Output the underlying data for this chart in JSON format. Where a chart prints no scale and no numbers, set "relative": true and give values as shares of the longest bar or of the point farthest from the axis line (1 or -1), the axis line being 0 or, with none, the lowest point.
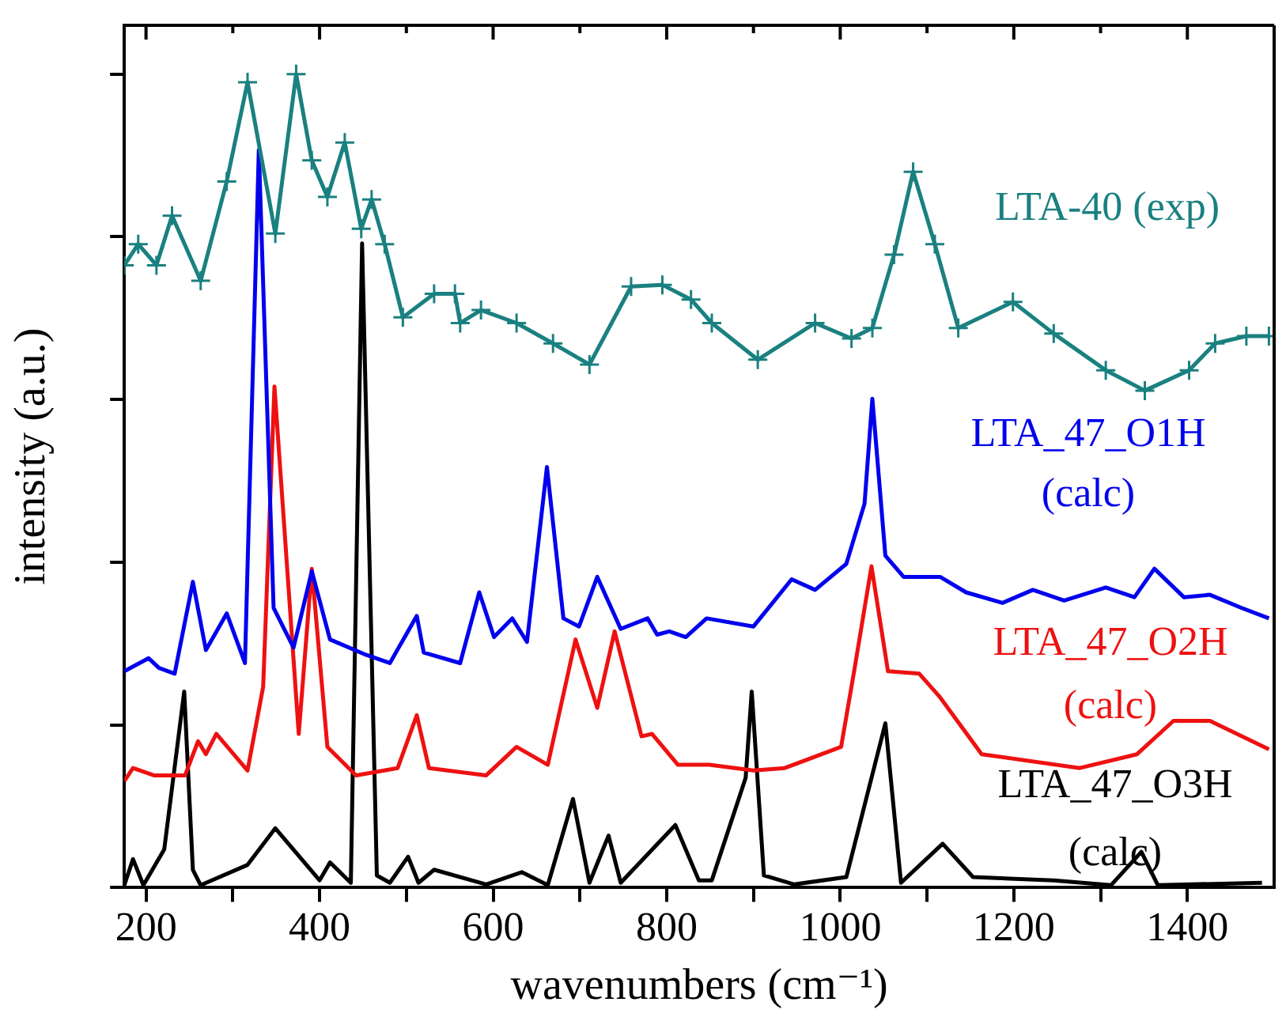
{
  "chart_data": {
    "type": "line",
    "relative": true,
    "xlabel": "wavenumbers (cm⁻¹)",
    "ylabel": "intensity (a.u.)",
    "xlim": [
      175,
      1500
    ],
    "xticks": [
      200,
      {
        "value": 300,
        "label": null
      },
      400,
      {
        "value": 500,
        "label": null
      },
      600,
      {
        "value": 700,
        "label": null
      },
      800,
      {
        "value": 900,
        "label": null
      },
      1000,
      {
        "value": 1100,
        "label": null
      },
      1200,
      {
        "value": 1300,
        "label": null
      },
      1400
    ],
    "grid": false,
    "legend": false,
    "marker": "none",
    "line_style": "solid",
    "series": [
      {
        "name": "LTA-40 (exp)",
        "color": "#1a8080",
        "marker": "cross",
        "x": [
          175,
          191,
          212,
          230,
          263,
          293,
          317,
          349,
          373,
          391,
          409,
          429,
          448,
          460,
          475,
          496,
          532,
          556,
          562,
          586,
          627,
          669,
          711,
          759,
          795,
          828,
          852,
          905,
          971,
          1013,
          1037,
          1062,
          1084,
          1109,
          1136,
          1199,
          1246,
          1306,
          1351,
          1402,
          1432,
          1468,
          1494
        ],
        "values": [
          0.765,
          0.791,
          0.765,
          0.826,
          0.746,
          0.868,
          0.99,
          0.804,
          1.0,
          0.894,
          0.849,
          0.916,
          0.81,
          0.846,
          0.791,
          0.701,
          0.73,
          0.73,
          0.694,
          0.71,
          0.694,
          0.669,
          0.643,
          0.739,
          0.741,
          0.723,
          0.694,
          0.649,
          0.694,
          0.675,
          0.688,
          0.778,
          0.88,
          0.791,
          0.688,
          0.72,
          0.681,
          0.636,
          0.611,
          0.636,
          0.669,
          0.678,
          0.678
        ]
      },
      {
        "name": "LTA_47_O1H (calc)",
        "color": "#0000ee",
        "x": [
          175,
          203,
          215,
          233,
          254,
          269,
          293,
          314,
          330,
          347,
          370,
          391,
          412,
          454,
          481,
          512,
          520,
          562,
          584,
          601,
          622,
          639,
          662,
          681,
          699,
          720,
          747,
          778,
          789,
          803,
          822,
          846,
          900,
          944,
          971,
          1007,
          1028,
          1037,
          1052,
          1073,
          1115,
          1145,
          1187,
          1222,
          1258,
          1306,
          1339,
          1362,
          1396,
          1426,
          1462,
          1494
        ],
        "values": [
          0.266,
          0.282,
          0.27,
          0.263,
          0.376,
          0.292,
          0.337,
          0.276,
          0.907,
          0.344,
          0.295,
          0.389,
          0.305,
          0.286,
          0.276,
          0.334,
          0.289,
          0.276,
          0.363,
          0.308,
          0.331,
          0.302,
          0.517,
          0.331,
          0.321,
          0.382,
          0.318,
          0.331,
          0.311,
          0.315,
          0.308,
          0.331,
          0.321,
          0.379,
          0.366,
          0.398,
          0.472,
          0.601,
          0.408,
          0.382,
          0.382,
          0.363,
          0.35,
          0.366,
          0.353,
          0.369,
          0.357,
          0.392,
          0.357,
          0.36,
          0.344,
          0.331
        ]
      },
      {
        "name": "LTA_47_O2H (calc)",
        "color": "#ee1111",
        "x": [
          175,
          185,
          209,
          245,
          260,
          269,
          281,
          317,
          335,
          348,
          376,
          391,
          409,
          442,
          490,
          512,
          526,
          592,
          627,
          663,
          695,
          720,
          740,
          771,
          783,
          813,
          849,
          900,
          936,
          1001,
          1016,
          1036,
          1055,
          1091,
          1115,
          1163,
          1276,
          1342,
          1384,
          1426,
          1494
        ],
        "values": [
          0.131,
          0.147,
          0.138,
          0.138,
          0.18,
          0.164,
          0.189,
          0.144,
          0.247,
          0.616,
          0.189,
          0.392,
          0.173,
          0.138,
          0.147,
          0.212,
          0.147,
          0.138,
          0.173,
          0.151,
          0.305,
          0.221,
          0.315,
          0.186,
          0.189,
          0.151,
          0.151,
          0.144,
          0.147,
          0.173,
          0.266,
          0.395,
          0.266,
          0.263,
          0.234,
          0.164,
          0.147,
          0.164,
          0.205,
          0.205,
          0.17
        ]
      },
      {
        "name": "LTA_47_O3H (calc)",
        "color": "#000000",
        "x": [
          175,
          185,
          197,
          221,
          244,
          254,
          263,
          317,
          349,
          400,
          412,
          436,
          449,
          466,
          481,
          502,
          514,
          532,
          592,
          633,
          663,
          692,
          711,
          733,
          747,
          810,
          837,
          852,
          891,
          898,
          912,
          947,
          1007,
          1052,
          1070,
          1118,
          1153,
          1246,
          1312,
          1347,
          1366,
          1486
        ],
        "values": [
          0.003,
          0.035,
          0.003,
          0.047,
          0.241,
          0.022,
          0.003,
          0.028,
          0.073,
          0.009,
          0.031,
          0.006,
          0.792,
          0.015,
          0.006,
          0.038,
          0.006,
          0.022,
          0.004,
          0.019,
          0.003,
          0.109,
          0.006,
          0.064,
          0.006,
          0.077,
          0.009,
          0.009,
          0.135,
          0.241,
          0.015,
          0.004,
          0.013,
          0.202,
          0.006,
          0.054,
          0.013,
          0.009,
          0.003,
          0.044,
          0.003,
          0.006
        ]
      }
    ]
  }
}
